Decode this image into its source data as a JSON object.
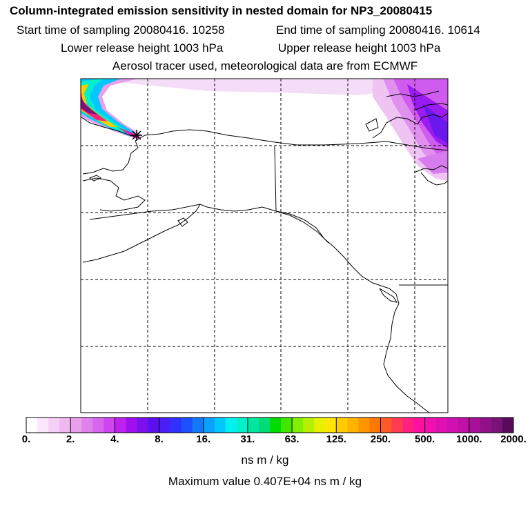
{
  "header": {
    "title": "Column-integrated emission sensitivity in nested domain for NP3_20080415",
    "start_time": "Start time of sampling 20080416. 10258",
    "end_time": "End time of sampling 20080416. 10614",
    "lower_height": "Lower release height 1003 hPa",
    "upper_height": "Upper release height 1003 hPa",
    "tracer_info": "Aerosol tracer used, meteorological data are from ECMWF"
  },
  "colorbar": {
    "tick_labels": [
      "0.",
      "2.",
      "4.",
      "8.",
      "16.",
      "31.",
      "63.",
      "125.",
      "250.",
      "500.",
      "1000.",
      "2000."
    ],
    "colors": [
      "#ffffff",
      "#fbe6fb",
      "#f6d0f6",
      "#f0b8f0",
      "#e9a0ec",
      "#e082ec",
      "#d865ee",
      "#cf45f0",
      "#bf22ef",
      "#a010ee",
      "#7a10ec",
      "#5a10ee",
      "#4a1ef5",
      "#3030ff",
      "#1e50ff",
      "#1478ff",
      "#0ca0ff",
      "#00c8ff",
      "#00f0f0",
      "#00f0c8",
      "#00e6a0",
      "#00dc78",
      "#00dc00",
      "#40e600",
      "#80f000",
      "#b4f000",
      "#e6f000",
      "#ffe600",
      "#ffcc00",
      "#ffb400",
      "#ff9600",
      "#ff7800",
      "#ff5a28",
      "#ff3c50",
      "#ff2080",
      "#ff10a0",
      "#f010b0",
      "#e010b0",
      "#d010b0",
      "#c010a8",
      "#a81098",
      "#901088",
      "#781478",
      "#5a0a5a"
    ],
    "units": "ns m / kg",
    "max_value": "Maximum value  0.407E+04 ns m / kg"
  }
}
